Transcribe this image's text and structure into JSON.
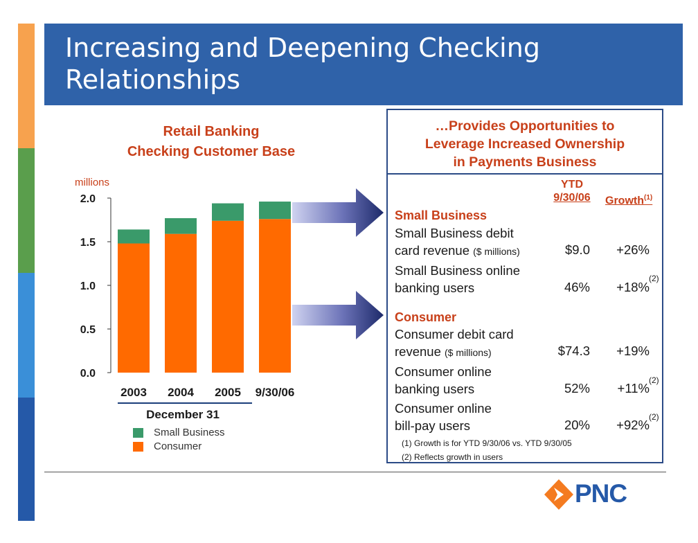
{
  "title": "Increasing and Deepening Checking Relationships",
  "chart_title": [
    "Retail Banking",
    "Checking Customer Base"
  ],
  "chart_data": {
    "type": "bar",
    "stacked": true,
    "categories": [
      "2003",
      "2004",
      "2005",
      "9/30/06"
    ],
    "series": [
      {
        "name": "Consumer",
        "values": [
          1.48,
          1.59,
          1.74,
          1.76
        ],
        "color": "#ff6a00"
      },
      {
        "name": "Small Business",
        "values": [
          0.16,
          0.18,
          0.2,
          0.2
        ],
        "color": "#3a9a6a"
      }
    ],
    "ylabel": "millions",
    "ylim": [
      0,
      2.0
    ],
    "yticks": [
      "0.0",
      "0.5",
      "1.0",
      "1.5",
      "2.0"
    ],
    "xlabel": "December 31",
    "legend": "bottom-left"
  },
  "legend": [
    {
      "label": "Small Business",
      "color": "#3a9a6a"
    },
    {
      "label": "Consumer",
      "color": "#ff6a00"
    }
  ],
  "box": {
    "title": [
      "…Provides Opportunities to",
      "Leverage Increased Ownership",
      "in Payments Business"
    ],
    "col_ytd": [
      "YTD",
      "9/30/06"
    ],
    "col_growth": "Growth",
    "col_growth_sup": "(1)",
    "sections": {
      "small_business": "Small Business",
      "consumer": "Consumer"
    },
    "rows": [
      {
        "l1": "Small Business debit",
        "l2": "card revenue",
        "l2_small": "($ millions)",
        "value": "$9.0",
        "growth": "+26%",
        "sup": ""
      },
      {
        "l1": "Small Business online",
        "l2": "banking users",
        "l2_small": "",
        "value": "46%",
        "growth": "+18%",
        "sup": "(2)"
      },
      {
        "l1": "Consumer debit card",
        "l2": "revenue",
        "l2_small": "($ millions)",
        "value": "$74.3",
        "growth": "+19%",
        "sup": ""
      },
      {
        "l1": "Consumer online",
        "l2": "banking users",
        "l2_small": "",
        "value": "52%",
        "growth": "+11%",
        "sup": "(2)"
      },
      {
        "l1": "Consumer online",
        "l2": "bill-pay users",
        "l2_small": "",
        "value": "20%",
        "growth": "+92%",
        "sup": "(2)"
      }
    ],
    "footnotes": [
      {
        "mark": "(1)",
        "text": "Growth is for YTD 9/30/06 vs. YTD 9/30/05"
      },
      {
        "mark": "(2)",
        "text": "Reflects growth in users"
      }
    ]
  },
  "logo": {
    "text": "PNC",
    "color": "#f47b20",
    "text_color": "#2559a8"
  }
}
